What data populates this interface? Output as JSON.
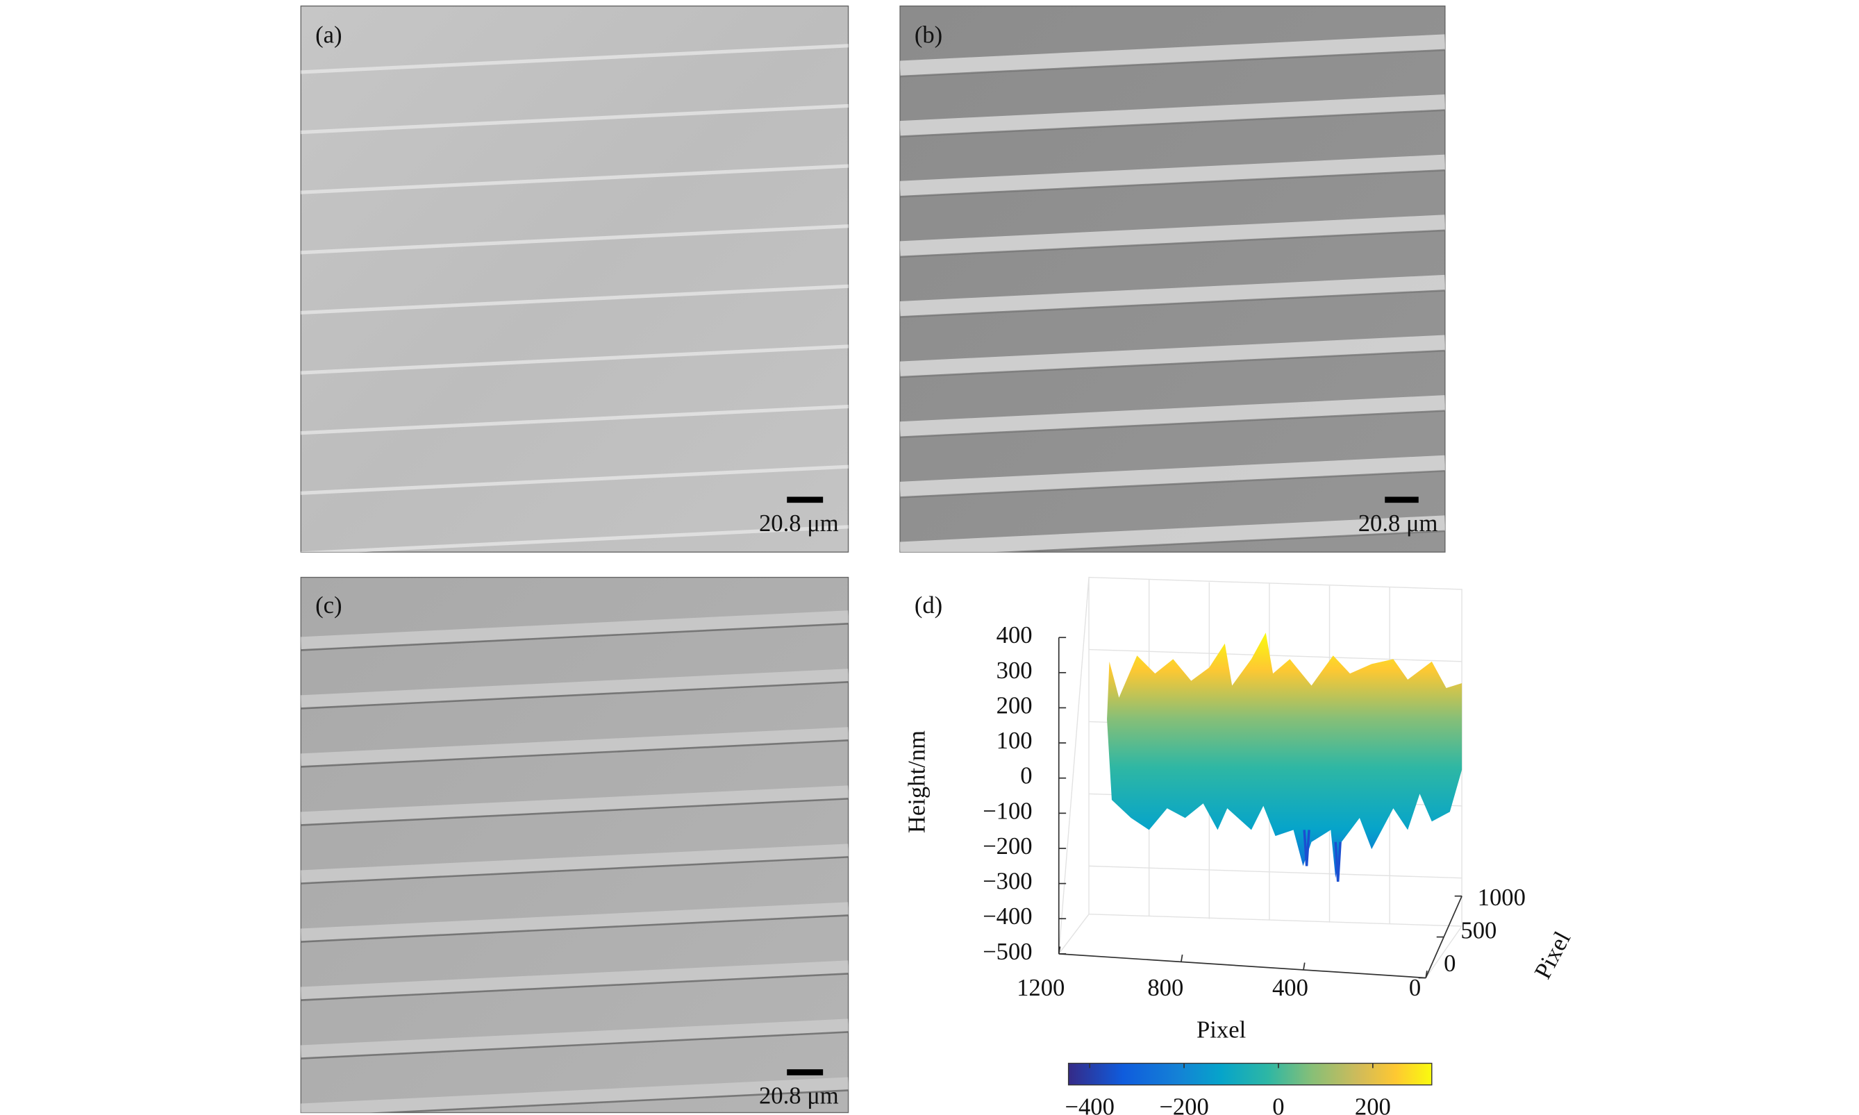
{
  "panels": [
    {
      "label": "(a)",
      "scale_bar": "20.8 μm"
    },
    {
      "label": "(b)",
      "scale_bar": "20.8 μm"
    },
    {
      "label": "(c)",
      "scale_bar": "20.8 μm"
    },
    {
      "label": "(d)",
      "z_axis": {
        "label": "Height/nm",
        "lim": [
          -500,
          400
        ],
        "ticks": [
          {
            "value": -500,
            "label": "−500"
          },
          {
            "value": -400,
            "label": "−400"
          },
          {
            "value": -300,
            "label": "−300"
          },
          {
            "value": -200,
            "label": "−200"
          },
          {
            "value": -100,
            "label": "−100"
          },
          0,
          100,
          200,
          300,
          400
        ]
      },
      "x_axis": {
        "label": "Pixel",
        "lim": [
          1200,
          0
        ],
        "ticks": [
          1200,
          800,
          400,
          0
        ]
      },
      "y_axis": {
        "label": "Pixel",
        "lim": [
          0,
          1000
        ],
        "ticks": [
          0,
          500,
          1000
        ]
      },
      "colorbar": {
        "lim": [
          -445,
          325
        ],
        "ticks": [
          {
            "value": -400,
            "label": "−400"
          },
          {
            "value": -200,
            "label": "−200"
          },
          0,
          200
        ]
      }
    }
  ]
}
